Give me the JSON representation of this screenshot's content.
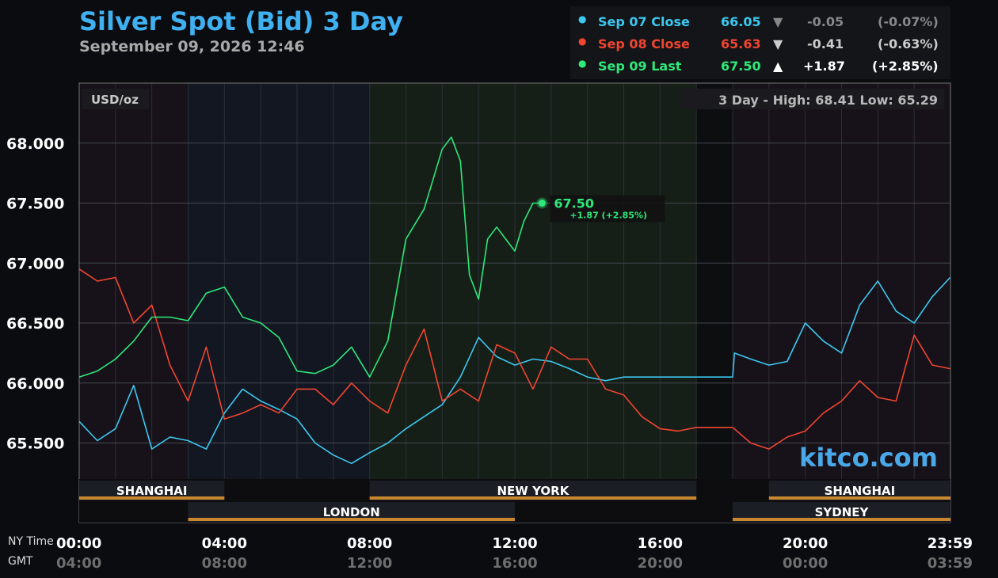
{
  "header": {
    "title": "Silver Spot (Bid) 3 Day",
    "subtitle": "September 09, 2026 12:46"
  },
  "legend": [
    {
      "label": "Sep 07 Close",
      "value": "66.05",
      "arrow": "▼",
      "change": "-0.05",
      "pct": "(-0.07%)",
      "color": "#3cc8f0",
      "arrow_color": "#888888",
      "change_color": "#888888"
    },
    {
      "label": "Sep 08 Close",
      "value": "65.63",
      "arrow": "▼",
      "change": "-0.41",
      "pct": "(-0.63%)",
      "color": "#f04530",
      "arrow_color": "#cccccc",
      "change_color": "#cccccc"
    },
    {
      "label": "Sep 09 Last",
      "value": "67.50",
      "arrow": "▲",
      "change": "+1.87",
      "pct": "(+2.85%)",
      "color": "#2ee87a",
      "arrow_color": "#ffffff",
      "change_color": "#ffffff"
    }
  ],
  "plot": {
    "unit_label": "USD/oz",
    "range_label": "3 Day - High: 68.41  Low: 65.29",
    "watermark": "kitco.com",
    "last_label": "67.50",
    "last_change": "+1.87 (+2.85%)"
  },
  "sessions": [
    {
      "name": "SHANGHAI",
      "start": 0,
      "end": 4,
      "row": 0
    },
    {
      "name": "LONDON",
      "start": 3,
      "end": 12,
      "row": 1
    },
    {
      "name": "NEW YORK",
      "start": 8,
      "end": 17,
      "row": 0
    },
    {
      "name": "SYDNEY",
      "start": 18,
      "end": 24,
      "row": 1
    },
    {
      "name": "SHANGHAI",
      "start": 19,
      "end": 24,
      "row": 0
    }
  ],
  "axis": {
    "ny_time_label": "NY Time",
    "gmt_label": "GMT",
    "ny_ticks": [
      "00:00",
      "04:00",
      "08:00",
      "12:00",
      "16:00",
      "20:00",
      "23:59"
    ],
    "gmt_ticks": [
      "04:00",
      "08:00",
      "12:00",
      "16:00",
      "20:00",
      "00:00",
      "03:59"
    ],
    "y_ticks": [
      "65.500",
      "66.000",
      "66.500",
      "67.000",
      "67.500",
      "68.000"
    ]
  },
  "chart_data": {
    "type": "line",
    "xlabel": "NY Time",
    "ylabel": "USD/oz",
    "xlim": [
      0,
      24
    ],
    "ylim": [
      65.2,
      68.5
    ],
    "grid": true,
    "series": [
      {
        "name": "Sep 07 Close",
        "color": "#3cc8f0",
        "x": [
          0,
          0.5,
          1,
          1.5,
          2,
          2.5,
          3,
          3.5,
          4,
          4.5,
          5,
          5.5,
          6,
          6.5,
          7,
          7.5,
          8,
          8.5,
          9,
          9.5,
          10,
          10.5,
          11,
          11.5,
          12,
          12.5,
          13,
          13.5,
          14,
          14.5,
          15,
          16,
          17,
          18,
          18.05,
          18.5,
          19,
          19.5,
          20,
          20.5,
          21,
          21.5,
          22,
          22.5,
          23,
          23.5,
          23.99
        ],
        "y": [
          65.68,
          65.52,
          65.62,
          65.98,
          65.45,
          65.55,
          65.52,
          65.45,
          65.75,
          65.95,
          65.85,
          65.78,
          65.7,
          65.5,
          65.4,
          65.33,
          65.42,
          65.5,
          65.62,
          65.72,
          65.82,
          66.05,
          66.38,
          66.22,
          66.15,
          66.2,
          66.18,
          66.12,
          66.05,
          66.02,
          66.05,
          66.05,
          66.05,
          66.05,
          66.25,
          66.2,
          66.15,
          66.18,
          66.5,
          66.35,
          66.25,
          66.65,
          66.85,
          66.6,
          66.5,
          66.72,
          66.88
        ]
      },
      {
        "name": "Sep 08 Close",
        "color": "#f04530",
        "x": [
          0,
          0.5,
          1,
          1.5,
          2,
          2.5,
          3,
          3.5,
          4,
          4.5,
          5,
          5.5,
          6,
          6.5,
          7,
          7.5,
          8,
          8.5,
          9,
          9.5,
          10,
          10.5,
          11,
          11.5,
          12,
          12.5,
          13,
          13.5,
          14,
          14.5,
          15,
          15.5,
          16,
          16.5,
          17,
          18,
          18.5,
          19,
          19.5,
          20,
          20.5,
          21,
          21.5,
          22,
          22.5,
          23,
          23.5,
          23.99
        ],
        "y": [
          66.95,
          66.85,
          66.88,
          66.5,
          66.65,
          66.15,
          65.85,
          66.3,
          65.7,
          65.75,
          65.82,
          65.75,
          65.95,
          65.95,
          65.82,
          66.0,
          65.85,
          65.75,
          66.15,
          66.45,
          65.85,
          65.95,
          65.85,
          66.32,
          66.25,
          65.95,
          66.3,
          66.2,
          66.2,
          65.95,
          65.9,
          65.72,
          65.62,
          65.6,
          65.63,
          65.63,
          65.5,
          65.45,
          65.55,
          65.6,
          65.75,
          65.85,
          66.02,
          65.88,
          65.85,
          66.4,
          66.15,
          66.12
        ]
      },
      {
        "name": "Sep 09 Last",
        "color": "#2ee87a",
        "x": [
          0,
          0.5,
          1,
          1.5,
          2,
          2.5,
          3,
          3.5,
          4,
          4.5,
          5,
          5.5,
          6,
          6.5,
          7,
          7.5,
          8,
          8.5,
          9,
          9.5,
          9.75,
          10,
          10.25,
          10.5,
          10.75,
          11,
          11.25,
          11.5,
          11.75,
          12,
          12.25,
          12.5,
          12.75
        ],
        "y": [
          66.05,
          66.1,
          66.2,
          66.35,
          66.55,
          66.55,
          66.52,
          66.75,
          66.8,
          66.55,
          66.5,
          66.38,
          66.1,
          66.08,
          66.15,
          66.3,
          66.05,
          66.35,
          67.2,
          67.45,
          67.7,
          67.95,
          68.05,
          67.85,
          66.9,
          66.7,
          67.2,
          67.3,
          67.2,
          67.1,
          67.35,
          67.5,
          67.5
        ]
      }
    ]
  }
}
